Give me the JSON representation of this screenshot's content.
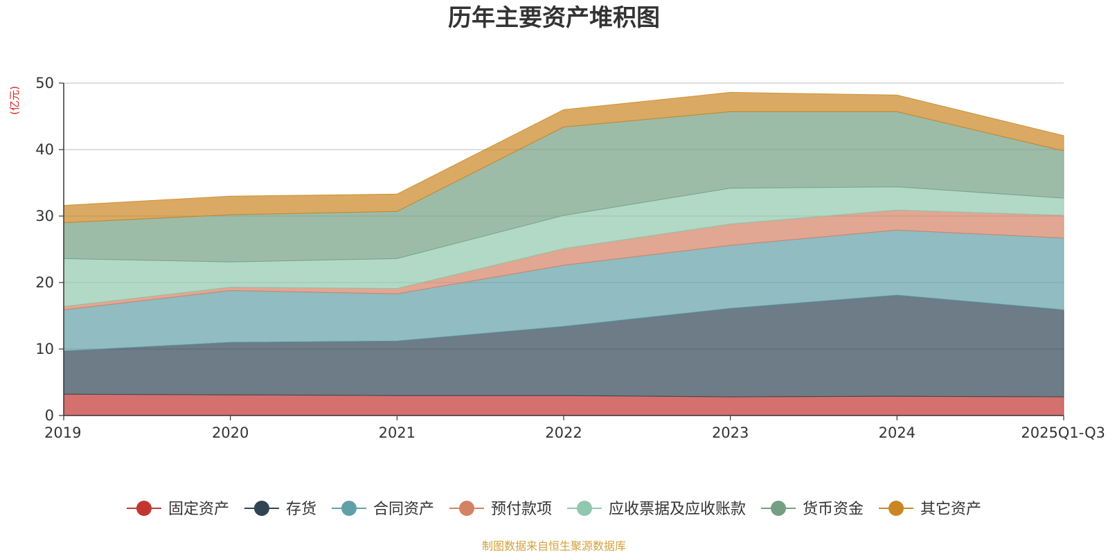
{
  "chart_data": {
    "type": "area",
    "stacked": true,
    "title": "历年主要资产堆积图",
    "ylabel": "(亿元)",
    "xlabel": "",
    "ylim": [
      0,
      50
    ],
    "yticks": [
      0,
      10,
      20,
      30,
      40,
      50
    ],
    "grid": true,
    "legend_position": "bottom",
    "categories": [
      "2019",
      "2020",
      "2021",
      "2022",
      "2023",
      "2024",
      "2025Q1-Q3"
    ],
    "series": [
      {
        "name": "固定资产",
        "color": "#c23531",
        "values": [
          3.2,
          3.1,
          3.0,
          3.0,
          2.8,
          2.9,
          2.8
        ]
      },
      {
        "name": "存货",
        "color": "#2f4554",
        "values": [
          6.5,
          7.9,
          8.2,
          10.4,
          13.3,
          15.2,
          13.1
        ]
      },
      {
        "name": "合同资产",
        "color": "#61a0a8",
        "values": [
          6.2,
          7.8,
          7.1,
          9.2,
          9.5,
          9.8,
          10.8
        ]
      },
      {
        "name": "预付款项",
        "color": "#d48265",
        "values": [
          0.5,
          0.5,
          0.8,
          2.5,
          3.2,
          3.0,
          3.4
        ]
      },
      {
        "name": "应收票据及应收账款",
        "color": "#91c7ae",
        "values": [
          7.2,
          3.8,
          4.5,
          5.0,
          5.4,
          3.5,
          2.6
        ]
      },
      {
        "name": "货币资金",
        "color": "#749f83",
        "values": [
          5.4,
          7.1,
          7.1,
          13.3,
          11.5,
          11.3,
          7.1
        ]
      },
      {
        "name": "其它资产",
        "color": "#ca8622",
        "values": [
          2.6,
          2.8,
          2.6,
          2.6,
          2.9,
          2.5,
          2.3
        ]
      }
    ]
  },
  "source": "制图数据来自恒生聚源数据库"
}
